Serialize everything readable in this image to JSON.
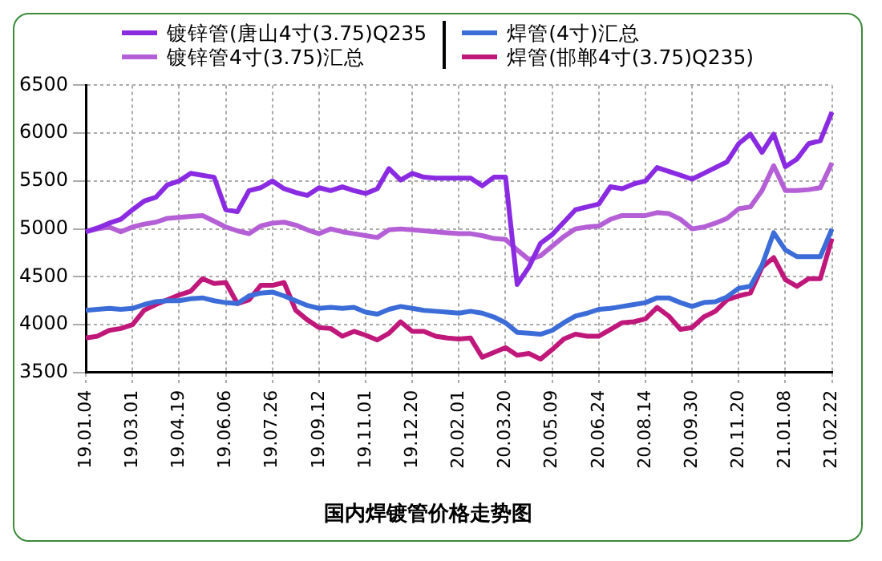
{
  "chart_data": {
    "type": "line",
    "title": "国内焊镀管价格走势图",
    "categories": [
      "19.01.04",
      null,
      null,
      null,
      "19.03.01",
      null,
      null,
      null,
      "19.04.19",
      null,
      null,
      null,
      "19.06.06",
      null,
      null,
      null,
      "19.07.26",
      null,
      null,
      null,
      "19.09.12",
      null,
      null,
      null,
      "19.11.01",
      null,
      null,
      null,
      "19.12.20",
      null,
      null,
      null,
      "20.02.01",
      null,
      null,
      null,
      "20.03.20",
      null,
      null,
      null,
      "20.05.09",
      null,
      null,
      null,
      "20.06.24",
      null,
      null,
      null,
      "20.08.14",
      null,
      null,
      null,
      "20.09.30",
      null,
      null,
      null,
      "20.11.20",
      null,
      null,
      null,
      "21.01.08",
      null,
      null,
      null,
      "21.02.22"
    ],
    "series": [
      {
        "name": "镀锌管(唐山4寸(3.75)Q235",
        "color": "#8a2be2",
        "values": [
          4970,
          5010,
          5060,
          5100,
          5200,
          5290,
          5330,
          5460,
          5500,
          5580,
          5560,
          5540,
          5200,
          5180,
          5400,
          5430,
          5500,
          5420,
          5380,
          5350,
          5430,
          5400,
          5440,
          5400,
          5370,
          5420,
          5630,
          5510,
          5580,
          5540,
          5530,
          5530,
          5530,
          5530,
          5450,
          5540,
          5540,
          4420,
          4600,
          4850,
          4940,
          5070,
          5200,
          5230,
          5260,
          5440,
          5420,
          5470,
          5500,
          5640,
          5600,
          5560,
          5520,
          5580,
          5640,
          5700,
          5890,
          5990,
          5800,
          5990,
          5650,
          5730,
          5890,
          5920,
          6220
        ]
      },
      {
        "name": "镀锌管4寸(3.75)汇总",
        "color": "#b45fd6",
        "values": [
          4970,
          5000,
          5020,
          4970,
          5020,
          5050,
          5070,
          5110,
          5120,
          5130,
          5140,
          5080,
          5020,
          4980,
          4950,
          5030,
          5060,
          5070,
          5040,
          4990,
          4950,
          5000,
          4970,
          4950,
          4930,
          4910,
          4990,
          5000,
          4990,
          4980,
          4970,
          4960,
          4950,
          4950,
          4930,
          4900,
          4890,
          4780,
          4680,
          4720,
          4820,
          4920,
          5000,
          5020,
          5030,
          5100,
          5140,
          5140,
          5140,
          5170,
          5160,
          5100,
          5000,
          5020,
          5060,
          5110,
          5210,
          5230,
          5400,
          5660,
          5400,
          5400,
          5410,
          5430,
          5690
        ]
      },
      {
        "name": "焊管(4寸)汇总",
        "color": "#3c6cd8",
        "values": [
          4150,
          4160,
          4170,
          4160,
          4170,
          4210,
          4240,
          4250,
          4250,
          4270,
          4280,
          4250,
          4230,
          4220,
          4300,
          4330,
          4340,
          4300,
          4250,
          4200,
          4170,
          4180,
          4170,
          4180,
          4130,
          4110,
          4160,
          4190,
          4170,
          4150,
          4140,
          4130,
          4120,
          4140,
          4120,
          4080,
          4020,
          3920,
          3910,
          3900,
          3940,
          4020,
          4090,
          4120,
          4160,
          4170,
          4190,
          4210,
          4230,
          4280,
          4280,
          4230,
          4190,
          4230,
          4240,
          4290,
          4380,
          4400,
          4620,
          4960,
          4780,
          4710,
          4710,
          4710,
          5000
        ]
      },
      {
        "name": "焊管(邯郸4寸(3.75)Q235)",
        "color": "#c0187a",
        "values": [
          3860,
          3880,
          3940,
          3960,
          4000,
          4150,
          4210,
          4260,
          4310,
          4350,
          4480,
          4430,
          4440,
          4220,
          4260,
          4410,
          4410,
          4440,
          4150,
          4050,
          3970,
          3960,
          3880,
          3930,
          3890,
          3840,
          3910,
          4030,
          3930,
          3930,
          3880,
          3860,
          3850,
          3860,
          3660,
          3710,
          3760,
          3680,
          3700,
          3640,
          3740,
          3850,
          3900,
          3880,
          3880,
          3950,
          4020,
          4030,
          4060,
          4180,
          4090,
          3950,
          3970,
          4080,
          4140,
          4260,
          4300,
          4330,
          4600,
          4700,
          4470,
          4400,
          4480,
          4480,
          4900
        ]
      }
    ],
    "ylim": [
      3500,
      6500
    ],
    "yticks": [
      3500,
      4000,
      4500,
      5000,
      5500,
      6000,
      6500
    ],
    "grid": true,
    "legend": "top",
    "marker": "none",
    "line_style": "solid"
  }
}
